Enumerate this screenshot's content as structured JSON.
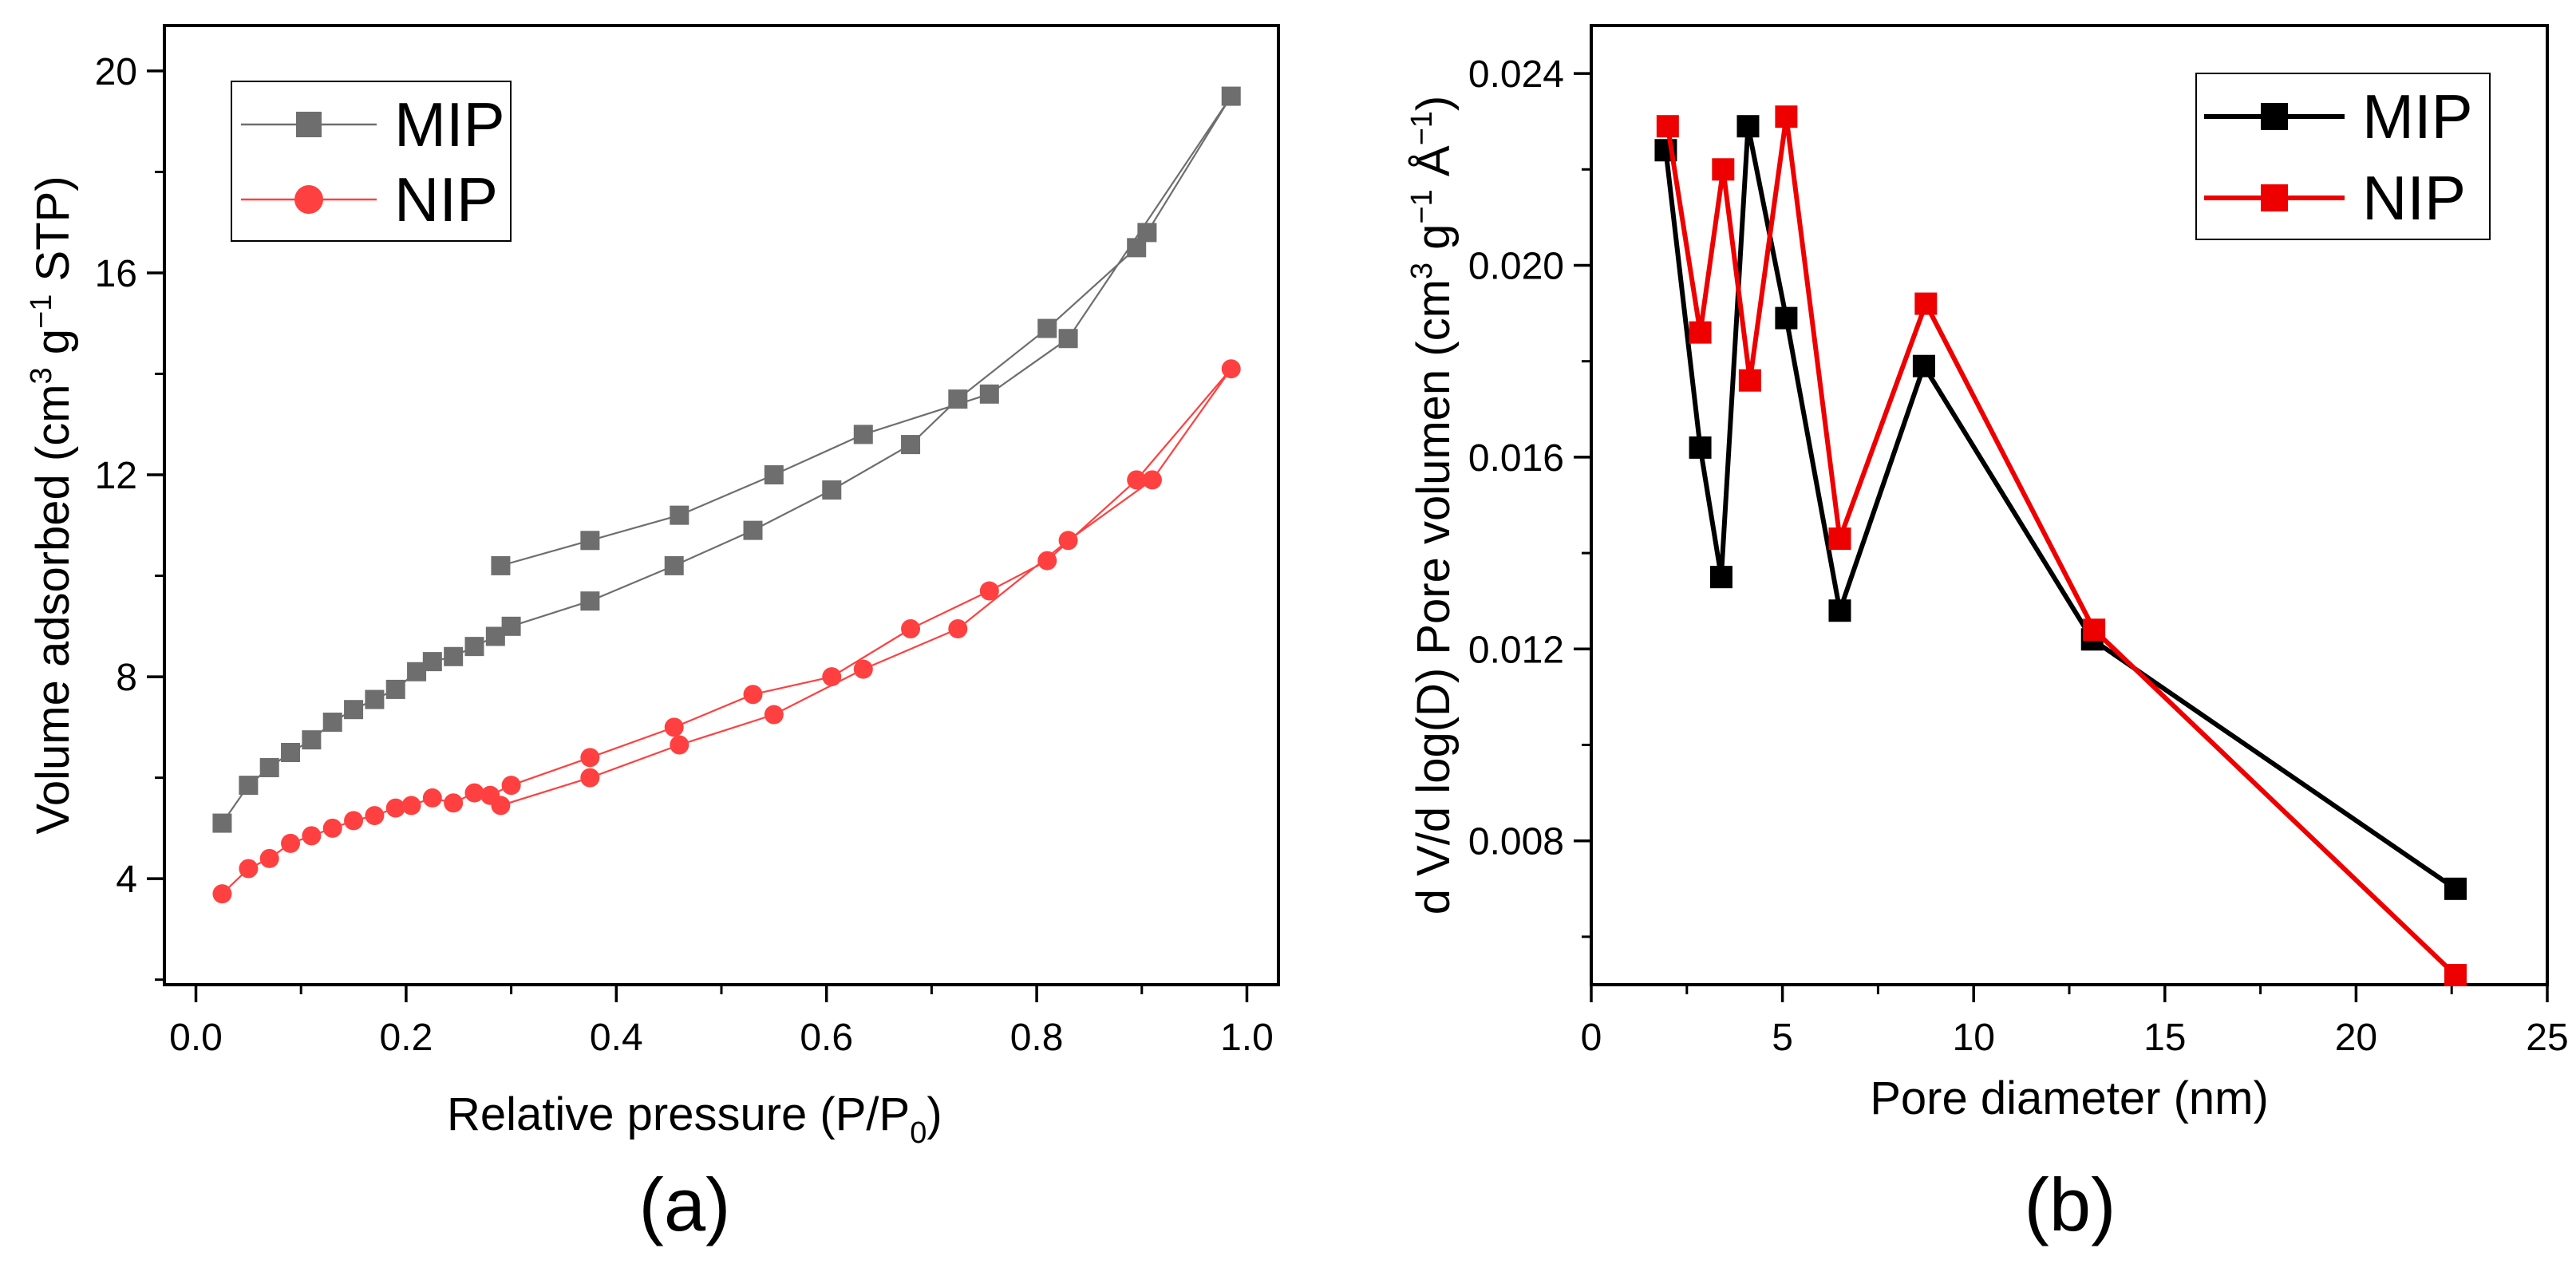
{
  "chart_data": [
    {
      "type": "line",
      "panel_label": "(a)",
      "xlabel": "Relative pressure (P/P",
      "xlabel_sub": "0",
      "xlabel_end": ")",
      "ylabel": "Volume adsorbed (cm",
      "ylabel_sup1": "3",
      "ylabel_mid": " g",
      "ylabel_sup2": "−1",
      "ylabel_end": " STP)",
      "xlim": [
        -0.03,
        1.03
      ],
      "ylim": [
        1.9,
        20.9
      ],
      "xticks": [
        0.0,
        0.2,
        0.4,
        0.6,
        0.8,
        1.0
      ],
      "xtick_labels": [
        "0.0",
        "0.2",
        "0.4",
        "0.6",
        "0.8",
        "1.0"
      ],
      "yticks": [
        4,
        8,
        12,
        16,
        20
      ],
      "ytick_labels": [
        "4",
        "8",
        "12",
        "16",
        "20"
      ],
      "legend_position": "top-left",
      "grid": false,
      "series": [
        {
          "name": "MIP",
          "color": "#6e6e6e",
          "marker": "square",
          "line": "thin",
          "x": [
            0.025,
            0.05,
            0.07,
            0.09,
            0.11,
            0.13,
            0.15,
            0.17,
            0.19,
            0.21,
            0.225,
            0.245,
            0.265,
            0.285,
            0.3,
            0.375,
            0.455,
            0.53,
            0.605,
            0.68,
            0.725,
            0.81,
            0.895,
            0.905,
            0.985,
            0.83,
            0.755,
            0.635,
            0.55,
            0.46,
            0.375,
            0.29
          ],
          "y": [
            5.1,
            5.85,
            6.2,
            6.5,
            6.75,
            7.1,
            7.35,
            7.55,
            7.75,
            8.1,
            8.3,
            8.4,
            8.6,
            8.8,
            9.0,
            9.5,
            10.2,
            10.9,
            11.7,
            12.6,
            13.5,
            14.9,
            16.5,
            16.8,
            19.5,
            14.7,
            13.6,
            12.8,
            12.0,
            11.2,
            10.7,
            10.2
          ]
        },
        {
          "name": "NIP",
          "color": "#ff4040",
          "marker": "circle",
          "line": "thin",
          "x": [
            0.025,
            0.05,
            0.07,
            0.09,
            0.11,
            0.13,
            0.15,
            0.17,
            0.19,
            0.205,
            0.225,
            0.245,
            0.265,
            0.28,
            0.3,
            0.375,
            0.455,
            0.53,
            0.605,
            0.68,
            0.755,
            0.81,
            0.895,
            0.985,
            0.91,
            0.83,
            0.725,
            0.635,
            0.55,
            0.46,
            0.375,
            0.29
          ],
          "y": [
            3.7,
            4.2,
            4.4,
            4.7,
            4.85,
            5.0,
            5.15,
            5.25,
            5.4,
            5.45,
            5.6,
            5.5,
            5.7,
            5.65,
            5.85,
            6.4,
            7.0,
            7.65,
            8.0,
            8.95,
            9.7,
            10.3,
            11.9,
            14.1,
            11.9,
            10.7,
            8.95,
            8.15,
            7.25,
            6.65,
            6.0,
            5.45
          ]
        }
      ]
    },
    {
      "type": "line",
      "panel_label": "(b)",
      "xlabel": "Pore diameter (nm)",
      "ylabel": "d V/d log(D) Pore volumen (cm",
      "ylabel_sup1": "3",
      "ylabel_mid": " g",
      "ylabel_sup2": "−1",
      "ylabel_mid2": " Å",
      "ylabel_sup3": "−1",
      "ylabel_end": ")",
      "xlim": [
        0,
        25
      ],
      "ylim": [
        0.005,
        0.025
      ],
      "xticks": [
        0,
        5,
        10,
        15,
        20,
        25
      ],
      "xtick_labels": [
        "0",
        "5",
        "10",
        "15",
        "20",
        "25"
      ],
      "yticks": [
        0.008,
        0.012,
        0.016,
        0.02,
        0.024
      ],
      "ytick_labels": [
        "0.008",
        "0.012",
        "0.016",
        "0.020",
        "0.024"
      ],
      "legend_position": "top-right",
      "grid": false,
      "series": [
        {
          "name": "MIP",
          "color": "#000000",
          "marker": "square",
          "line": "thick",
          "x": [
            1.95,
            2.85,
            3.4,
            4.1,
            5.1,
            6.5,
            8.7,
            13.1,
            22.6
          ],
          "y": [
            0.0224,
            0.0162,
            0.0135,
            0.0229,
            0.0189,
            0.0128,
            0.0179,
            0.0122,
            0.007
          ]
        },
        {
          "name": "NIP",
          "color": "#ee0000",
          "marker": "square",
          "line": "thick",
          "x": [
            2.0,
            2.85,
            3.45,
            4.15,
            5.1,
            6.5,
            8.75,
            13.15,
            22.6
          ],
          "y": [
            0.0229,
            0.0186,
            0.022,
            0.0176,
            0.0231,
            0.0143,
            0.0192,
            0.0124,
            0.0052
          ]
        }
      ]
    }
  ]
}
